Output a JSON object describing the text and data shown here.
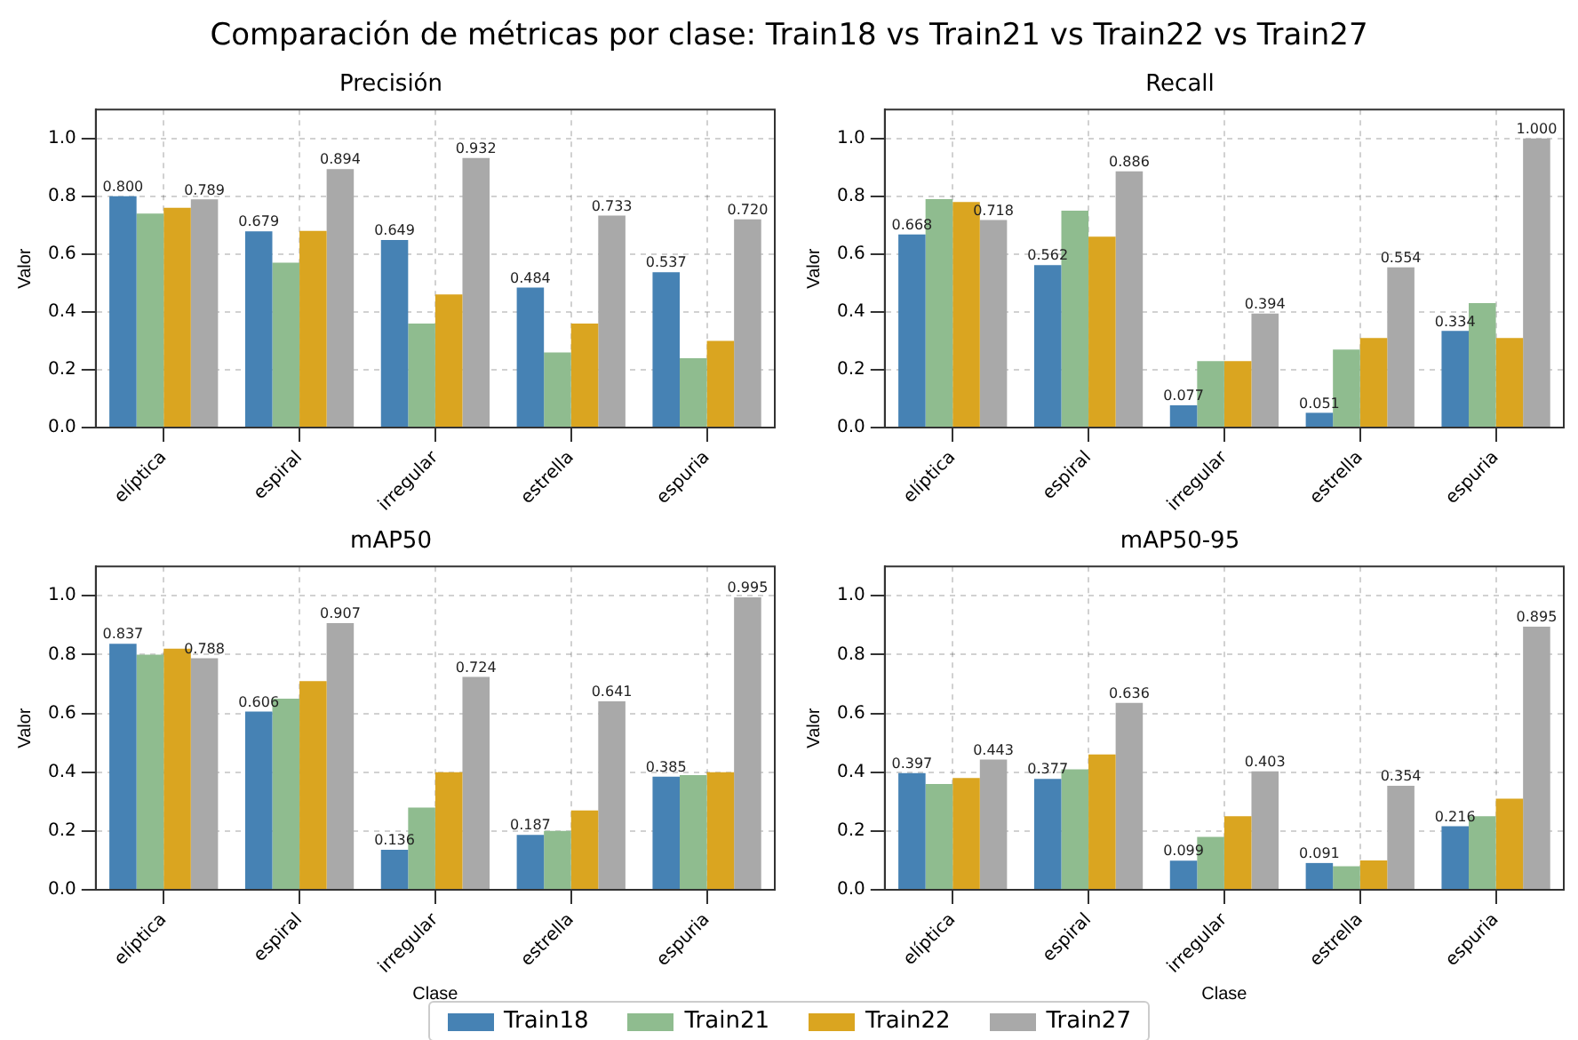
{
  "chart_data": [
    {
      "type": "bar",
      "title": "Precisión",
      "annotations": [
        "Comparación de métricas por clase: Train18 vs Train21 vs Train22 vs Train27"
      ],
      "ylabel": "Valor",
      "categories": [
        "elíptica",
        "espiral",
        "irregular",
        "estrella",
        "espuria"
      ],
      "ylim": [
        0,
        1.1
      ],
      "yticks": [
        {
          "value": 0,
          "label": "0.0"
        },
        {
          "value": 0.2,
          "label": "0.2"
        },
        {
          "value": 0.4,
          "label": "0.4"
        },
        {
          "value": 0.6,
          "label": "0.6"
        },
        {
          "value": 0.8,
          "label": "0.8"
        },
        {
          "value": 1,
          "label": "1.0"
        }
      ],
      "grid": true,
      "legend": "bottom",
      "series": [
        {
          "name": "Train18",
          "color": "#4682b4",
          "values": [
            0.8,
            0.679,
            0.649,
            0.484,
            0.537
          ],
          "value_labels": [
            "0.800",
            "0.679",
            "0.649",
            "0.484",
            "0.537"
          ]
        },
        {
          "name": "Train21",
          "color": "#8fbc8f",
          "values": [
            0.74,
            0.57,
            0.36,
            0.26,
            0.24
          ]
        },
        {
          "name": "Train22",
          "color": "#daa520",
          "values": [
            0.76,
            0.68,
            0.46,
            0.36,
            0.3
          ]
        },
        {
          "name": "Train27",
          "color": "#a9a9a9",
          "values": [
            0.789,
            0.894,
            0.932,
            0.733,
            0.72
          ],
          "value_labels": [
            "0.789",
            "0.894",
            "0.932",
            "0.733",
            "0.720"
          ]
        }
      ]
    },
    {
      "type": "bar",
      "title": "Recall",
      "ylabel": "Valor",
      "categories": [
        "elíptica",
        "espiral",
        "irregular",
        "estrella",
        "espuria"
      ],
      "ylim": [
        0,
        1.1
      ],
      "yticks": [
        {
          "value": 0,
          "label": "0.0"
        },
        {
          "value": 0.2,
          "label": "0.2"
        },
        {
          "value": 0.4,
          "label": "0.4"
        },
        {
          "value": 0.6,
          "label": "0.6"
        },
        {
          "value": 0.8,
          "label": "0.8"
        },
        {
          "value": 1,
          "label": "1.0"
        }
      ],
      "grid": true,
      "series": [
        {
          "color": "#4682b4",
          "values": [
            0.668,
            0.562,
            0.077,
            0.051,
            0.334
          ],
          "value_labels": [
            "0.668",
            "0.562",
            "0.077",
            "0.051",
            "0.334"
          ]
        },
        {
          "color": "#8fbc8f",
          "values": [
            0.79,
            0.75,
            0.23,
            0.27,
            0.43
          ]
        },
        {
          "color": "#daa520",
          "values": [
            0.78,
            0.66,
            0.23,
            0.31,
            0.31
          ]
        },
        {
          "color": "#a9a9a9",
          "values": [
            0.718,
            0.886,
            0.394,
            0.554,
            1.0
          ],
          "value_labels": [
            "0.718",
            "0.886",
            "0.394",
            "0.554",
            "1.000"
          ]
        }
      ]
    },
    {
      "type": "bar",
      "title": "mAP50",
      "xlabel": "Clase",
      "ylabel": "Valor",
      "categories": [
        "elíptica",
        "espiral",
        "irregular",
        "estrella",
        "espuria"
      ],
      "ylim": [
        0,
        1.1
      ],
      "yticks": [
        {
          "value": 0,
          "label": "0.0"
        },
        {
          "value": 0.2,
          "label": "0.2"
        },
        {
          "value": 0.4,
          "label": "0.4"
        },
        {
          "value": 0.6,
          "label": "0.6"
        },
        {
          "value": 0.8,
          "label": "0.8"
        },
        {
          "value": 1,
          "label": "1.0"
        }
      ],
      "grid": true,
      "series": [
        {
          "color": "#4682b4",
          "values": [
            0.837,
            0.606,
            0.136,
            0.187,
            0.385
          ],
          "value_labels": [
            "0.837",
            "0.606",
            "0.136",
            "0.187",
            "0.385"
          ]
        },
        {
          "color": "#8fbc8f",
          "values": [
            0.8,
            0.65,
            0.28,
            0.2,
            0.39
          ]
        },
        {
          "color": "#daa520",
          "values": [
            0.82,
            0.71,
            0.4,
            0.27,
            0.4
          ]
        },
        {
          "color": "#a9a9a9",
          "values": [
            0.788,
            0.907,
            0.724,
            0.641,
            0.995
          ],
          "value_labels": [
            "0.788",
            "0.907",
            "0.724",
            "0.641",
            "0.995"
          ]
        }
      ]
    },
    {
      "type": "bar",
      "title": "mAP50-95",
      "xlabel": "Clase",
      "ylabel": "Valor",
      "categories": [
        "elíptica",
        "espiral",
        "irregular",
        "estrella",
        "espuria"
      ],
      "ylim": [
        0,
        1.1
      ],
      "yticks": [
        {
          "value": 0,
          "label": "0.0"
        },
        {
          "value": 0.2,
          "label": "0.2"
        },
        {
          "value": 0.4,
          "label": "0.4"
        },
        {
          "value": 0.6,
          "label": "0.6"
        },
        {
          "value": 0.8,
          "label": "0.8"
        },
        {
          "value": 1,
          "label": "1.0"
        }
      ],
      "grid": true,
      "series": [
        {
          "color": "#4682b4",
          "values": [
            0.397,
            0.377,
            0.099,
            0.091,
            0.216
          ],
          "value_labels": [
            "0.397",
            "0.377",
            "0.099",
            "0.091",
            "0.216"
          ]
        },
        {
          "color": "#8fbc8f",
          "values": [
            0.36,
            0.41,
            0.18,
            0.08,
            0.25
          ]
        },
        {
          "color": "#daa520",
          "values": [
            0.38,
            0.46,
            0.25,
            0.1,
            0.31
          ]
        },
        {
          "color": "#a9a9a9",
          "values": [
            0.443,
            0.636,
            0.403,
            0.354,
            0.895
          ],
          "value_labels": [
            "0.443",
            "0.636",
            "0.403",
            "0.354",
            "0.895"
          ]
        }
      ]
    }
  ]
}
